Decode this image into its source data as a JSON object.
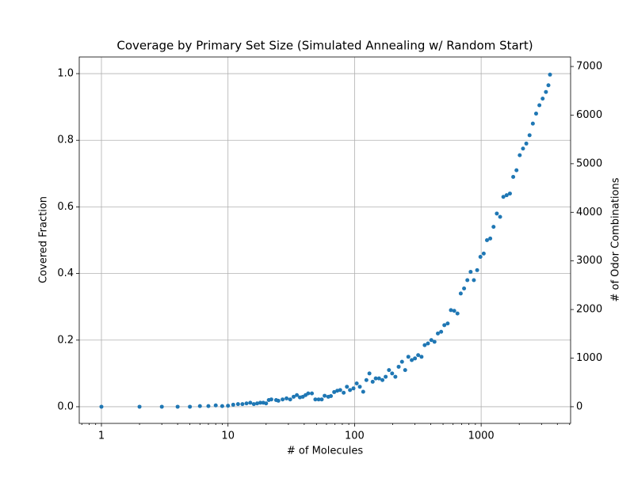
{
  "chart_data": {
    "type": "scatter",
    "title": "Coverage by Primary Set Size (Simulated Annealing w/ Random Start)",
    "x_label": "# of Molecules",
    "y_label": "Covered Fraction",
    "y2_label": "# of Odor Combinations",
    "x_log": true,
    "grid": true,
    "xlim": [
      0.668,
      5090
    ],
    "xticks": [
      1,
      10,
      100,
      1000
    ],
    "ylim": [
      -0.05,
      1.05
    ],
    "yticks": [
      {
        "value": 0,
        "label": "0.0"
      },
      0.2,
      0.4,
      0.6,
      0.8,
      {
        "value": 1,
        "label": "1.0"
      }
    ],
    "y2lim": [
      -343,
      7196
    ],
    "y2ticks": [
      0,
      1000,
      2000,
      3000,
      4000,
      5000,
      6000,
      7000
    ],
    "series": [
      {
        "color": "#1f77b4",
        "x": [
          1,
          2,
          3,
          4,
          5,
          6,
          7,
          8,
          9,
          10,
          11,
          12,
          13,
          14,
          15,
          16,
          17,
          18,
          19,
          20,
          21,
          22,
          24,
          25,
          27,
          29,
          31,
          33,
          35,
          37,
          39,
          41,
          43,
          46,
          49,
          52,
          55,
          58,
          62,
          65,
          69,
          73,
          77,
          82,
          87,
          92,
          98,
          104,
          110,
          117,
          124,
          131,
          139,
          147,
          156,
          166,
          176,
          187,
          198,
          210,
          223,
          237,
          251,
          266,
          283,
          300,
          318,
          338,
          358,
          380,
          404,
          428,
          455,
          483,
          512,
          544,
          577,
          613,
          650,
          690,
          733,
          778,
          826,
          876,
          930,
          987,
          1048,
          1112,
          1180,
          1253,
          1330,
          1412,
          1498,
          1590,
          1688,
          1792,
          1902,
          2018,
          2142,
          2274,
          2413,
          2561,
          2718,
          2885,
          3062,
          3250,
          3400,
          3500
        ],
        "values": [
          0,
          0,
          0,
          0,
          0,
          0.002,
          0.002,
          0.004,
          0.002,
          0.003,
          0.006,
          0.008,
          0.008,
          0.01,
          0.012,
          0.008,
          0.01,
          0.012,
          0.012,
          0.01,
          0.02,
          0.022,
          0.02,
          0.018,
          0.022,
          0.025,
          0.022,
          0.03,
          0.035,
          0.028,
          0.03,
          0.035,
          0.04,
          0.04,
          0.022,
          0.022,
          0.022,
          0.033,
          0.03,
          0.032,
          0.044,
          0.048,
          0.05,
          0.042,
          0.06,
          0.05,
          0.055,
          0.07,
          0.06,
          0.045,
          0.08,
          0.1,
          0.075,
          0.085,
          0.085,
          0.08,
          0.09,
          0.11,
          0.1,
          0.09,
          0.12,
          0.135,
          0.11,
          0.15,
          0.14,
          0.145,
          0.155,
          0.15,
          0.185,
          0.19,
          0.2,
          0.195,
          0.22,
          0.225,
          0.245,
          0.25,
          0.29,
          0.288,
          0.28,
          0.34,
          0.355,
          0.38,
          0.405,
          0.38,
          0.41,
          0.45,
          0.46,
          0.5,
          0.505,
          0.54,
          0.58,
          0.57,
          0.63,
          0.635,
          0.64,
          0.69,
          0.71,
          0.755,
          0.775,
          0.79,
          0.815,
          0.85,
          0.88,
          0.905,
          0.925,
          0.945,
          0.965,
          0.997
        ]
      }
    ]
  }
}
